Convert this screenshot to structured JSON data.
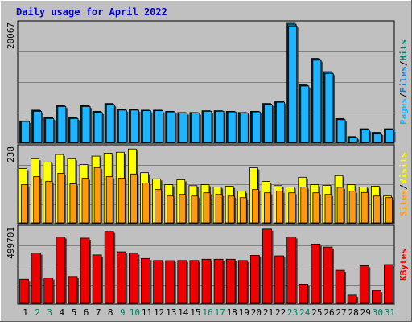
{
  "title": "Daily usage for April 2022",
  "colors": {
    "background": "#c0c0c0",
    "title": "#0000c0",
    "pages": "#1fb4ff",
    "files": "#0a7bd6",
    "hits": "#00806f",
    "visits": "#ffff00",
    "sites": "#ff9a10",
    "kbytes": "#ee0000",
    "weekend_label": "#008060"
  },
  "chart_data": [
    {
      "type": "bar",
      "panel": "top",
      "ymax_label": "20067",
      "ylim": [
        0,
        20067
      ],
      "right_labels": [
        "Pages",
        "Files",
        "Hits"
      ],
      "categories": [
        "1",
        "2",
        "3",
        "4",
        "5",
        "6",
        "7",
        "8",
        "9",
        "10",
        "11",
        "12",
        "13",
        "14",
        "15",
        "16",
        "17",
        "18",
        "19",
        "20",
        "21",
        "22",
        "23",
        "24",
        "25",
        "26",
        "27",
        "28",
        "29",
        "30",
        "31"
      ],
      "weekend_days": [
        "2",
        "3",
        "9",
        "10",
        "16",
        "17",
        "23",
        "24",
        "30",
        "31"
      ],
      "series": [
        {
          "name": "Hits",
          "values": [
            3700,
            5500,
            4300,
            6300,
            4300,
            6300,
            5300,
            6600,
            5700,
            5600,
            5500,
            5500,
            5300,
            5100,
            5100,
            5400,
            5400,
            5300,
            5100,
            5300,
            6600,
            7000,
            20067,
            9700,
            14100,
            11900,
            4100,
            1100,
            2400,
            1800,
            2400
          ]
        },
        {
          "name": "Files",
          "values": [
            3650,
            5400,
            4200,
            6200,
            4200,
            6200,
            5200,
            6500,
            5600,
            5550,
            5450,
            5450,
            5250,
            5050,
            5050,
            5350,
            5350,
            5250,
            5050,
            5250,
            6500,
            6900,
            19800,
            9600,
            14000,
            11800,
            4000,
            1000,
            2300,
            1700,
            2300
          ]
        },
        {
          "name": "Pages",
          "values": [
            3600,
            5300,
            4100,
            6100,
            4100,
            6100,
            5100,
            6400,
            5500,
            5500,
            5400,
            5400,
            5200,
            5000,
            5000,
            5300,
            5300,
            5200,
            5000,
            5200,
            6400,
            6800,
            19500,
            9500,
            13800,
            11600,
            3900,
            900,
            2200,
            1600,
            2200
          ]
        }
      ]
    },
    {
      "type": "bar",
      "panel": "middle",
      "ymax_label": "238",
      "ylim": [
        0,
        238
      ],
      "right_labels": [
        "Sites",
        "Visits"
      ],
      "categories": [
        "1",
        "2",
        "3",
        "4",
        "5",
        "6",
        "7",
        "8",
        "9",
        "10",
        "11",
        "12",
        "13",
        "14",
        "15",
        "16",
        "17",
        "18",
        "19",
        "20",
        "21",
        "22",
        "23",
        "24",
        "25",
        "26",
        "27",
        "28",
        "29",
        "30",
        "31"
      ],
      "series": [
        {
          "name": "Visits",
          "values": [
            170,
            200,
            190,
            213,
            200,
            182,
            208,
            217,
            220,
            230,
            157,
            138,
            120,
            135,
            117,
            120,
            113,
            115,
            100,
            172,
            130,
            117,
            113,
            143,
            120,
            118,
            148,
            120,
            113,
            115,
            85
          ]
        },
        {
          "name": "Sites",
          "values": [
            120,
            145,
            130,
            155,
            123,
            140,
            173,
            145,
            140,
            153,
            125,
            105,
            85,
            90,
            85,
            95,
            90,
            85,
            80,
            105,
            95,
            100,
            95,
            113,
            95,
            90,
            112,
            100,
            96,
            85,
            80
          ]
        }
      ]
    },
    {
      "type": "bar",
      "panel": "bottom",
      "ymax_label": "499701",
      "ylim": [
        0,
        499701
      ],
      "right_labels": [
        "KBytes"
      ],
      "categories": [
        "1",
        "2",
        "3",
        "4",
        "5",
        "6",
        "7",
        "8",
        "9",
        "10",
        "11",
        "12",
        "13",
        "14",
        "15",
        "16",
        "17",
        "18",
        "19",
        "20",
        "21",
        "22",
        "23",
        "24",
        "25",
        "26",
        "27",
        "28",
        "29",
        "30",
        "31"
      ],
      "series": [
        {
          "name": "KBytes",
          "values": [
            160000,
            330000,
            168000,
            435000,
            178000,
            427000,
            318000,
            470000,
            338000,
            330000,
            295000,
            282000,
            281000,
            282000,
            282000,
            290000,
            290000,
            290000,
            282000,
            315000,
            485000,
            312000,
            435000,
            128000,
            388000,
            369000,
            218000,
            58000,
            248000,
            88000,
            255000
          ]
        }
      ]
    }
  ]
}
